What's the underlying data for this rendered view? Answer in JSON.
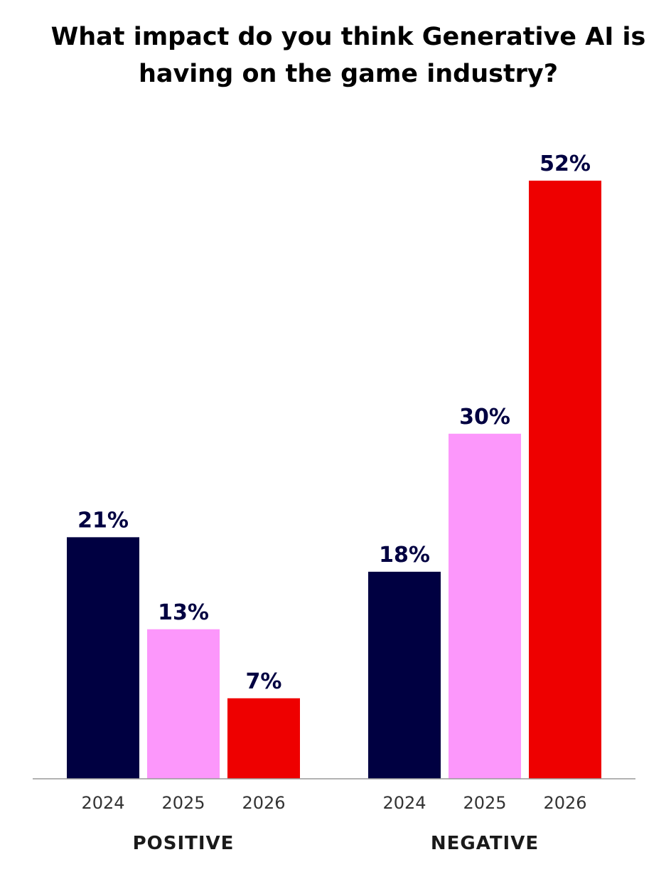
{
  "chart_data": {
    "type": "bar",
    "title": "What impact do you think Generative AI is having on the game industry?",
    "groups": [
      "POSITIVE",
      "NEGATIVE"
    ],
    "categories": [
      "2024",
      "2025",
      "2026"
    ],
    "series": [
      {
        "group": "POSITIVE",
        "values": [
          21,
          13,
          7
        ],
        "labels": [
          "21%",
          "13%",
          "7%"
        ]
      },
      {
        "group": "NEGATIVE",
        "values": [
          18,
          30,
          52
        ],
        "labels": [
          "18%",
          "30%",
          "52%"
        ]
      }
    ],
    "colors": {
      "2024": "#000041",
      "2025": "#FC97FB",
      "2026": "#EE0000"
    },
    "label_color": "#000041",
    "axis_color": "#999999",
    "ylim": [
      0,
      52
    ],
    "grid": false,
    "legend": "none"
  }
}
